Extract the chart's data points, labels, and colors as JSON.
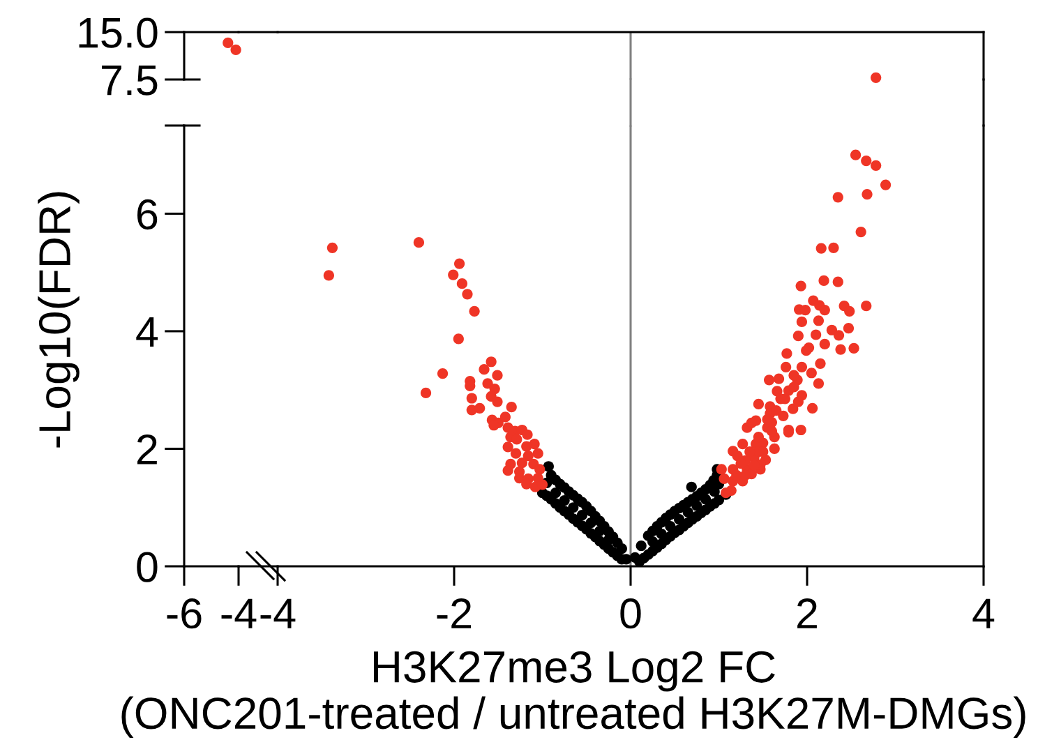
{
  "chart_data": [
    {
      "type": "scatter",
      "series": [
        {
          "color": "#ef3526",
          "x": [
            -4.39,
            -4.1
          ],
          "values": [
            13.3,
            12.2
          ]
        }
      ],
      "xlim": [
        -6,
        -4
      ],
      "ylim": [
        7.5,
        15
      ],
      "yticks": [
        7.5,
        {
          "value": 15,
          "label": "15.0"
        }
      ],
      "tick_labels": "y",
      "marker": "circle"
    },
    {
      "type": "scatter",
      "series": [
        {
          "color": "#ef3526",
          "x": [
            2.78
          ],
          "values": [
            7.8
          ]
        }
      ],
      "xlim": [
        -4,
        4
      ],
      "ylim": [
        7.5,
        15
      ],
      "tick_labels": false,
      "marker": "circle",
      "ref_lines": [
        {
          "axis": "x",
          "value": 0,
          "color": "#808080"
        }
      ]
    },
    {
      "type": "scatter",
      "xlim": [
        -6,
        -4
      ],
      "xticks": [
        -6,
        -4
      ],
      "ylim": [
        0,
        7.5
      ],
      "yticks": [
        0,
        2,
        4,
        6,
        {
          "value": 7.5,
          "label": null
        }
      ],
      "ylabel": "-Log10(FDR)"
    },
    {
      "type": "scatter",
      "xlabel": "H3K27me3 Log2 FC\n(ONC201-treated / untreated H3K27M-DMGs)",
      "xlim": [
        -4,
        4
      ],
      "xticks": [
        -4,
        -2,
        0,
        2,
        4
      ],
      "ylim": [
        0,
        7.5
      ],
      "tick_labels": "x",
      "marker": "circle",
      "ref_lines": [
        {
          "axis": "x",
          "value": 0,
          "color": "#808080"
        }
      ],
      "series": [
        {
          "color": "#000000",
          "x": [
            -0.93,
            -0.9,
            -0.85,
            -0.8,
            -0.75,
            -0.7,
            -0.65,
            -0.6,
            -0.55,
            -0.5,
            -0.45,
            -0.4,
            -0.35,
            -0.3,
            -0.25,
            -0.2,
            -0.15,
            -0.1,
            -0.95,
            -0.85,
            -0.75,
            -0.65,
            -0.55,
            -0.45,
            -0.35,
            -0.25,
            -0.05,
            -1.0,
            -0.95,
            -0.9,
            -0.85,
            -0.8,
            -0.75,
            -0.7,
            -0.65,
            -0.6,
            -0.55,
            -0.5,
            -0.45,
            -0.4,
            -0.35,
            -0.3,
            -0.25,
            -0.2,
            -0.15,
            -0.1,
            0.05,
            0.12,
            0.2,
            0.25,
            0.3,
            0.35,
            0.4,
            0.45,
            0.5,
            0.55,
            0.6,
            0.65,
            0.7,
            0.75,
            0.8,
            0.85,
            0.9,
            0.94,
            0.98,
            0.98,
            0.69,
            0.25,
            0.35,
            0.45,
            0.55,
            0.65,
            0.75,
            0.85,
            0.95,
            1.0,
            0.1,
            0.15,
            0.2,
            0.25,
            0.3,
            0.35,
            0.4,
            0.45,
            0.5,
            0.55,
            0.6,
            0.65,
            0.7,
            0.75,
            0.8,
            0.85,
            0.9,
            0.95,
            1.0,
            1.08
          ],
          "values": [
            1.7,
            1.55,
            1.47,
            1.4,
            1.34,
            1.27,
            1.21,
            1.15,
            1.09,
            1.02,
            0.94,
            0.85,
            0.77,
            0.68,
            0.59,
            0.5,
            0.4,
            0.3,
            1.42,
            1.25,
            1.12,
            1.0,
            0.87,
            0.74,
            0.6,
            0.45,
            0.12,
            1.25,
            1.2,
            1.14,
            1.07,
            1.0,
            0.94,
            0.88,
            0.81,
            0.75,
            0.69,
            0.63,
            0.56,
            0.5,
            0.43,
            0.37,
            0.3,
            0.24,
            0.18,
            0.12,
            0.15,
            0.35,
            0.52,
            0.6,
            0.68,
            0.75,
            0.82,
            0.88,
            0.94,
            0.99,
            1.04,
            1.09,
            1.14,
            1.19,
            1.25,
            1.31,
            1.38,
            1.46,
            1.55,
            1.65,
            1.35,
            0.42,
            0.55,
            0.68,
            0.8,
            0.92,
            1.03,
            1.14,
            1.27,
            1.4,
            0.08,
            0.14,
            0.2,
            0.26,
            0.32,
            0.38,
            0.45,
            0.51,
            0.57,
            0.62,
            0.68,
            0.74,
            0.8,
            0.85,
            0.91,
            0.96,
            1.02,
            1.07,
            1.13,
            1.22
          ]
        },
        {
          "color": "#ef3526",
          "x": [
            -3.38,
            -3.42,
            -2.4,
            -1.94,
            -2.01,
            -1.91,
            -1.85,
            -1.77,
            -1.95,
            -2.13,
            -2.32,
            -1.58,
            -1.66,
            -1.51,
            -1.82,
            -1.82,
            -1.62,
            -1.54,
            -1.58,
            -1.8,
            -1.51,
            -1.35,
            -1.8,
            -1.71,
            -1.57,
            -1.5,
            -1.42,
            -1.55,
            -1.39,
            -1.31,
            -1.23,
            -1.17,
            -1.36,
            -1.29,
            -1.09,
            -1.18,
            -1.39,
            -1.05,
            -1.16,
            -1.3,
            -1.23,
            -1.1,
            -1.36,
            -1.39,
            -1.26,
            -1.03,
            -1.26,
            -1.16,
            -1.05,
            -1.18,
            -1.08,
            -1.0,
            2.55,
            2.67,
            2.78,
            2.89,
            2.35,
            2.68,
            2.61,
            2.16,
            2.3,
            1.93,
            2.19,
            2.35,
            2.67,
            2.07,
            1.91,
            1.98,
            2.14,
            2.2,
            2.42,
            2.48,
            1.94,
            2.13,
            2.47,
            1.9,
            2.1,
            2.28,
            2.36,
            2.02,
            2.53,
            2.38,
            1.77,
            1.99,
            2.2,
            2.15,
            1.94,
            1.76,
            2.13,
            2.05,
            1.57,
            1.68,
            1.89,
            1.79,
            1.66,
            1.94,
            2.06,
            1.45,
            1.58,
            1.84,
            1.73,
            1.93,
            1.42,
            1.32,
            1.55,
            1.79,
            1.63,
            1.27,
            1.42,
            1.63,
            1.21,
            1.4,
            1.53,
            1.16,
            1.32,
            1.47,
            1.16,
            1.27,
            1.37,
            1.14,
            1.08,
            1.47,
            1.79,
            1.58,
            1.37,
            1.16,
            1.03,
            1.06,
            1.7,
            1.5,
            1.3,
            1.85,
            1.2,
            1.45,
            1.6,
            1.9,
            1.25,
            1.35,
            1.45,
            1.55,
            1.65,
            1.75,
            1.85,
            1.3,
            1.4,
            1.5,
            1.6
          ],
          "values": [
            5.42,
            4.95,
            5.51,
            5.15,
            4.96,
            4.81,
            4.63,
            4.34,
            3.87,
            3.28,
            2.95,
            3.48,
            3.35,
            3.25,
            3.15,
            3.07,
            3.11,
            3.02,
            2.89,
            2.86,
            2.8,
            2.71,
            2.66,
            2.69,
            2.49,
            2.44,
            2.54,
            2.4,
            2.36,
            2.3,
            2.32,
            2.24,
            2.2,
            2.16,
            2.08,
            2.04,
            2.03,
            1.92,
            1.88,
            1.92,
            1.76,
            1.74,
            1.74,
            1.63,
            1.61,
            1.65,
            1.5,
            1.49,
            1.5,
            1.4,
            1.35,
            1.39,
            7.0,
            6.9,
            6.82,
            6.49,
            6.28,
            6.33,
            5.69,
            5.41,
            5.42,
            4.77,
            4.86,
            4.84,
            4.43,
            4.52,
            4.37,
            4.36,
            4.44,
            4.36,
            4.43,
            4.34,
            4.16,
            4.18,
            4.05,
            3.92,
            3.94,
            4.02,
            3.93,
            3.72,
            3.71,
            3.69,
            3.62,
            3.67,
            3.78,
            3.45,
            3.39,
            3.39,
            3.11,
            3.29,
            3.17,
            3.19,
            3.17,
            2.99,
            2.98,
            2.91,
            2.69,
            2.76,
            2.72,
            2.68,
            2.56,
            2.32,
            2.48,
            2.36,
            2.36,
            2.32,
            2.2,
            2.08,
            2.08,
            2.0,
            1.88,
            1.85,
            1.81,
            1.65,
            1.65,
            1.65,
            1.45,
            1.45,
            1.57,
            1.29,
            1.25,
            1.73,
            2.28,
            2.6,
            2.44,
            1.96,
            1.65,
            1.49,
            2.85,
            2.1,
            1.8,
            3.05,
            1.55,
            1.95,
            2.45,
            2.8,
            1.75,
            1.95,
            2.2,
            2.5,
            2.65,
            2.85,
            3.25,
            1.55,
            1.72,
            1.95,
            2.3
          ]
        }
      ]
    }
  ]
}
